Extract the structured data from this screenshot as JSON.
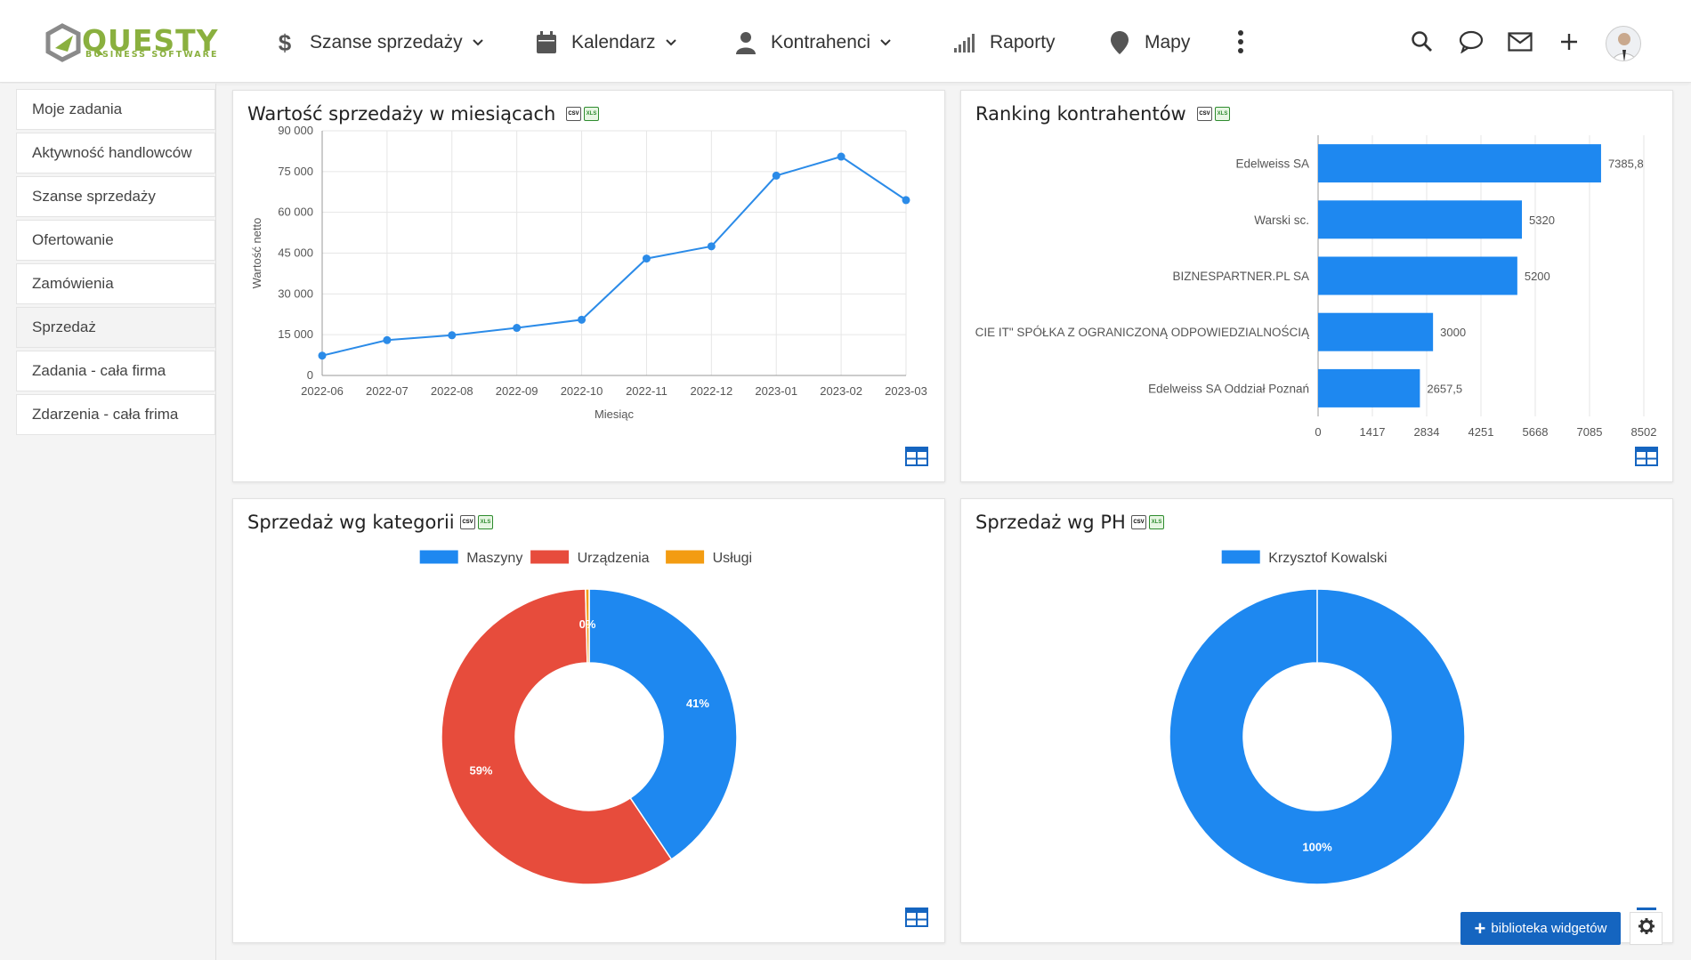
{
  "app": {
    "logo_text": "QUESTY",
    "logo_subtext": "BUSINESS SOFTWARE",
    "brand_color": "#8ab03f",
    "accent_color": "#1565c0"
  },
  "nav": [
    {
      "label": "Szanse sprzedaży",
      "icon": "dollar-icon",
      "dropdown": true
    },
    {
      "label": "Kalendarz",
      "icon": "calendar-icon",
      "dropdown": true
    },
    {
      "label": "Kontrahenci",
      "icon": "person-icon",
      "dropdown": true
    },
    {
      "label": "Raporty",
      "icon": "bar-signal-icon",
      "dropdown": false
    },
    {
      "label": "Mapy",
      "icon": "map-pin-icon",
      "dropdown": false
    }
  ],
  "header_icons": [
    "more-vertical-icon",
    "search-icon",
    "chat-icon",
    "mail-icon",
    "plus-icon",
    "avatar"
  ],
  "sidebar": {
    "items": [
      {
        "label": "Moje zadania",
        "active": false
      },
      {
        "label": "Aktywność handlowców",
        "active": false
      },
      {
        "label": "Szanse sprzedaży",
        "active": false
      },
      {
        "label": "Ofertowanie",
        "active": false
      },
      {
        "label": "Zamówienia",
        "active": false
      },
      {
        "label": "Sprzedaż",
        "active": true
      },
      {
        "label": "Zadania - cała firma",
        "active": false
      },
      {
        "label": "Zdarzenia - cała frima",
        "active": false
      }
    ]
  },
  "export_labels": {
    "csv": "CSV",
    "xls": "XLS"
  },
  "widgets": {
    "line": {
      "title": "Wartość sprzedaży w miesiącach"
    },
    "ranking": {
      "title": "Ranking kontrahentów"
    },
    "category": {
      "title": "Sprzedaż wg kategorii"
    },
    "ph": {
      "title": "Sprzedaż wg PH"
    }
  },
  "chart_data": [
    {
      "type": "line",
      "title": "Wartość sprzedaży w miesiącach",
      "xlabel": "Miesiąc",
      "ylabel": "Wartość netto",
      "categories": [
        "2022-06",
        "2022-07",
        "2022-08",
        "2022-09",
        "2022-10",
        "2022-11",
        "2022-12",
        "2023-01",
        "2023-02",
        "2023-03"
      ],
      "values": [
        7300,
        13000,
        14800,
        17500,
        20500,
        43000,
        47500,
        73500,
        80500,
        64500
      ],
      "ylim": [
        0,
        90000
      ],
      "yticks": [
        0,
        15000,
        30000,
        45000,
        60000,
        75000,
        90000
      ],
      "ytick_labels": [
        "0",
        "15 000",
        "30 000",
        "45 000",
        "60 000",
        "75 000",
        "90 000"
      ],
      "color": "#2b8be8",
      "grid": true
    },
    {
      "type": "bar",
      "orientation": "horizontal",
      "title": "Ranking kontrahentów",
      "categories": [
        "Edelweiss SA",
        "Warski sc.",
        "BIZNESPARTNER.PL SA",
        "CIE IT\" SPÓŁKA Z OGRANICZONĄ ODPOWIEDZIALNOŚCIĄ",
        "Edelweiss SA Oddział Poznań"
      ],
      "values": [
        7385.8,
        5320,
        5200,
        3000,
        2657.5
      ],
      "value_labels": [
        "7385,8",
        "5320",
        "5200",
        "3000",
        "2657,5"
      ],
      "xlim": [
        0,
        8502
      ],
      "xticks": [
        0,
        1417,
        2834,
        4251,
        5668,
        7085,
        8502
      ],
      "color": "#1e88f0",
      "grid": true
    },
    {
      "type": "pie",
      "style": "donut",
      "title": "Sprzedaż wg kategorii",
      "legend_placement": "top",
      "series": [
        {
          "name": "Maszyny",
          "value": 40.6,
          "label": "41%",
          "color": "#1e88f0"
        },
        {
          "name": "Urządzenia",
          "value": 59.0,
          "label": "59%",
          "color": "#e74c3c"
        },
        {
          "name": "Usługi",
          "value": 0.4,
          "label": "0%",
          "color": "#f39c12"
        }
      ]
    },
    {
      "type": "pie",
      "style": "donut",
      "title": "Sprzedaż wg PH",
      "legend_placement": "top",
      "series": [
        {
          "name": "Krzysztof Kowalski",
          "value": 100,
          "label": "100%",
          "color": "#1e88f0"
        }
      ]
    }
  ],
  "footer": {
    "widget_library_label": "biblioteka widgetów"
  }
}
